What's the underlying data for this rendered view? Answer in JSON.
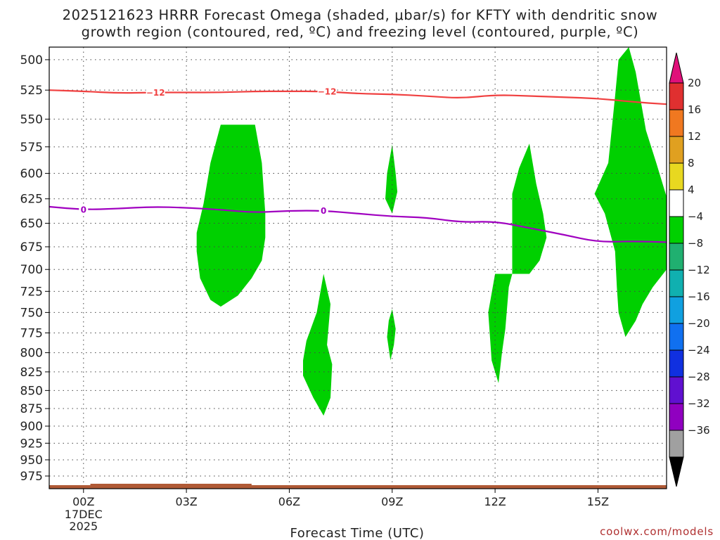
{
  "chart_data": {
    "type": "heatmap",
    "title_line_1": "2025121623 HRRR Forecast Omega (shaded, μbar/s) for KFTY with dendritic snow",
    "title_line_2": "growth region (contoured, red, ºC) and freezing level (contoured, purple, ºC)",
    "xlabel": "Forecast Time (UTC)",
    "credit": "coolwx.com/models",
    "y_ticks": [
      500,
      525,
      550,
      575,
      600,
      625,
      650,
      675,
      700,
      725,
      750,
      775,
      800,
      825,
      850,
      875,
      900,
      925,
      950,
      975
    ],
    "y_scale": "log (pressure, mb)",
    "ylim": [
      490,
      995
    ],
    "x_ticks": [
      {
        "h": 0,
        "label": "00Z",
        "sub": [
          "17DEC",
          "2025"
        ]
      },
      {
        "h": 3,
        "label": "03Z"
      },
      {
        "h": 6,
        "label": "06Z"
      },
      {
        "h": 9,
        "label": "09Z"
      },
      {
        "h": 12,
        "label": "12Z"
      },
      {
        "h": 15,
        "label": "15Z"
      }
    ],
    "xlim": [
      -1,
      17
    ],
    "grid": true,
    "colorbar": {
      "labels": [
        "20",
        "16",
        "12",
        "8",
        "4",
        "−4",
        "−8",
        "−12",
        "−16",
        "−20",
        "−24",
        "−28",
        "−32",
        "−36"
      ],
      "colors": [
        "#e03030",
        "#f07820",
        "#e0a020",
        "#e8d820",
        "#ffffff",
        "#00d000",
        "#20b070",
        "#10b0b0",
        "#10a0e0",
        "#1070f0",
        "#1030e0",
        "#6010d0",
        "#9000c0",
        "#a0a0a0"
      ],
      "top_arrow_color": "#e0107a",
      "bottom_arrow_color": "#000000"
    },
    "contours": [
      {
        "name": "−12",
        "color": "#f04040",
        "points": [
          [
            -1,
            525
          ],
          [
            0,
            526
          ],
          [
            1,
            527.5
          ],
          [
            2,
            527
          ],
          [
            3,
            527
          ],
          [
            4,
            527
          ],
          [
            5,
            526
          ],
          [
            6,
            526
          ],
          [
            7,
            526
          ],
          [
            8,
            528
          ],
          [
            9,
            528.5
          ],
          [
            10,
            530
          ],
          [
            11,
            532
          ],
          [
            12,
            529
          ],
          [
            13,
            530
          ],
          [
            14,
            531
          ],
          [
            15,
            532
          ],
          [
            16,
            535
          ],
          [
            17,
            537
          ]
        ],
        "labels": [
          [
            2.1,
            527
          ],
          [
            7.1,
            526
          ]
        ]
      },
      {
        "name": "0",
        "color": "#a000c0",
        "points": [
          [
            -1,
            633
          ],
          [
            0,
            636
          ],
          [
            1,
            635
          ],
          [
            2,
            633
          ],
          [
            3,
            634
          ],
          [
            4,
            636
          ],
          [
            5,
            639
          ],
          [
            6,
            637
          ],
          [
            7,
            637
          ],
          [
            8,
            640
          ],
          [
            9,
            643
          ],
          [
            10,
            644
          ],
          [
            11,
            649
          ],
          [
            12,
            648
          ],
          [
            13,
            655
          ],
          [
            14,
            662
          ],
          [
            15,
            670
          ],
          [
            16,
            669
          ],
          [
            17,
            670
          ]
        ],
        "labels": [
          [
            0,
            636
          ],
          [
            7,
            637
          ]
        ]
      }
    ],
    "shaded_regions": [
      {
        "name": "omega −4 to −8",
        "color": "#00d000",
        "points": [
          [
            4.0,
            555
          ],
          [
            5.0,
            555
          ],
          [
            5.2,
            590
          ],
          [
            5.3,
            640
          ],
          [
            5.3,
            665
          ],
          [
            5.2,
            690
          ],
          [
            4.9,
            710
          ],
          [
            4.5,
            730
          ],
          [
            4.0,
            743
          ],
          [
            3.7,
            735
          ],
          [
            3.4,
            710
          ],
          [
            3.3,
            680
          ],
          [
            3.3,
            660
          ],
          [
            3.5,
            630
          ],
          [
            3.7,
            590
          ]
        ]
      },
      {
        "name": "omega −4 to −8",
        "color": "#00d000",
        "points": [
          [
            7.0,
            705
          ],
          [
            7.2,
            740
          ],
          [
            7.1,
            790
          ],
          [
            7.25,
            815
          ],
          [
            7.2,
            860
          ],
          [
            7.0,
            885
          ],
          [
            6.7,
            860
          ],
          [
            6.4,
            830
          ],
          [
            6.4,
            810
          ],
          [
            6.5,
            785
          ],
          [
            6.8,
            750
          ]
        ]
      },
      {
        "name": "omega −4 to −8",
        "color": "#00d000",
        "points": [
          [
            9.0,
            573
          ],
          [
            9.1,
            600
          ],
          [
            9.15,
            618
          ],
          [
            9.0,
            640
          ],
          [
            8.8,
            625
          ],
          [
            8.85,
            600
          ]
        ]
      },
      {
        "name": "omega −4 to −8",
        "color": "#00d000",
        "points": [
          [
            9.0,
            746
          ],
          [
            9.1,
            770
          ],
          [
            9.05,
            790
          ],
          [
            8.95,
            810
          ],
          [
            8.85,
            780
          ],
          [
            8.9,
            760
          ]
        ]
      },
      {
        "name": "omega −4 to −8",
        "color": "#00d000",
        "points": [
          [
            13.0,
            572
          ],
          [
            13.2,
            610
          ],
          [
            13.4,
            640
          ],
          [
            13.5,
            665
          ],
          [
            13.3,
            690
          ],
          [
            13.0,
            705
          ],
          [
            12.5,
            705
          ],
          [
            12.4,
            720
          ],
          [
            12.3,
            770
          ],
          [
            12.2,
            800
          ],
          [
            12.1,
            840
          ],
          [
            11.9,
            810
          ],
          [
            11.8,
            750
          ],
          [
            12.0,
            705
          ],
          [
            12.5,
            705
          ],
          [
            12.5,
            620
          ],
          [
            12.7,
            595
          ]
        ]
      },
      {
        "name": "omega −4 to −8",
        "color": "#00d000",
        "points": [
          [
            15.9,
            490
          ],
          [
            16.1,
            510
          ],
          [
            16.4,
            560
          ],
          [
            16.7,
            590
          ],
          [
            17.0,
            623
          ],
          [
            17.0,
            700
          ],
          [
            16.6,
            720
          ],
          [
            16.3,
            740
          ],
          [
            16.1,
            760
          ],
          [
            15.8,
            780
          ],
          [
            15.6,
            750
          ],
          [
            15.55,
            720
          ],
          [
            15.5,
            680
          ],
          [
            15.2,
            640
          ],
          [
            14.9,
            620
          ],
          [
            15.3,
            590
          ],
          [
            15.5,
            530
          ],
          [
            15.6,
            500
          ]
        ]
      }
    ],
    "ground": {
      "name": "terrain",
      "color": "#b05a36"
    }
  }
}
